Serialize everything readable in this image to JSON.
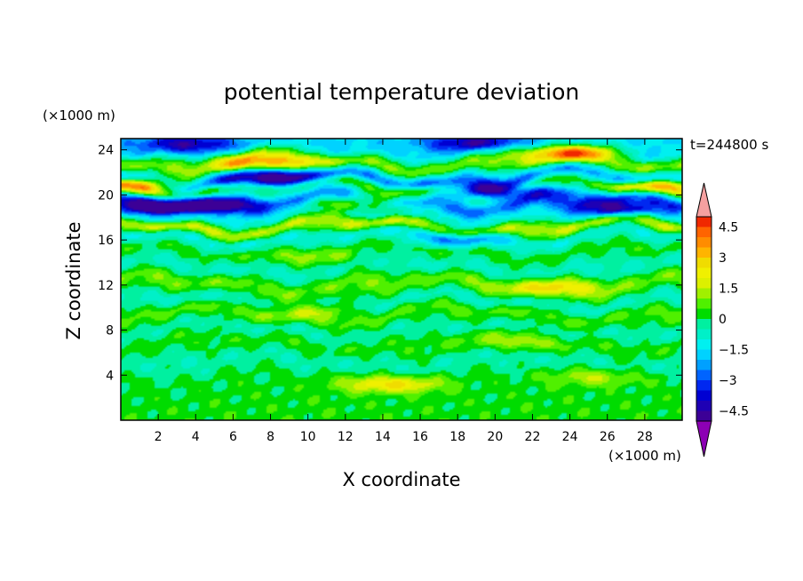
{
  "chart_data": {
    "type": "heatmap",
    "title": "potential temperature deviation",
    "xlabel": "X coordinate",
    "ylabel": "Z coordinate",
    "x_unit": "(×1000 m)",
    "y_unit": "(×1000 m)",
    "time_label": "t=244800 s",
    "xlim": [
      0,
      30
    ],
    "ylim": [
      0,
      25
    ],
    "x_ticks": [
      2,
      4,
      6,
      8,
      10,
      12,
      14,
      16,
      18,
      20,
      22,
      24,
      26,
      28
    ],
    "y_ticks": [
      4,
      8,
      12,
      16,
      20,
      24
    ],
    "colorbar": {
      "levels": [
        -5,
        -4.5,
        -4,
        -3.5,
        -3,
        -2.5,
        -2,
        -1.5,
        -1,
        -0.5,
        0,
        0.5,
        1,
        1.5,
        2,
        2.5,
        3,
        3.5,
        4,
        4.5,
        5
      ],
      "labels": [
        "4.5",
        "3",
        "1.5",
        "0",
        "−1.5",
        "−3",
        "−4.5"
      ],
      "label_values": [
        4.5,
        3,
        1.5,
        0,
        -1.5,
        -3,
        -4.5
      ],
      "colors": [
        "#3c0096",
        "#1e00b4",
        "#0000d2",
        "#0028f0",
        "#0064ff",
        "#00a0ff",
        "#00d2ff",
        "#00f0f0",
        "#00f0c8",
        "#00f0a0",
        "#00dc00",
        "#50f000",
        "#a0f000",
        "#dcf000",
        "#f0f000",
        "#f0dc00",
        "#ffb400",
        "#ff8c00",
        "#ff6400",
        "#f02800"
      ],
      "over_color": "#f5a0a0",
      "under_color": "#8c00b4"
    },
    "bands": [
      {
        "z": 24.3,
        "v": -1.6
      },
      {
        "z": 22.8,
        "v": 0.9
      },
      {
        "z": 21.5,
        "v": -2.3
      },
      {
        "z": 20.6,
        "v": 0.4
      },
      {
        "z": 19.3,
        "v": -2.6
      },
      {
        "z": 18.2,
        "v": -1.0
      },
      {
        "z": 17.2,
        "v": 1.5
      },
      {
        "z": 16.2,
        "v": -0.9
      },
      {
        "z": 15.0,
        "v": 0.2
      },
      {
        "z": 13.5,
        "v": -0.6
      },
      {
        "z": 12.0,
        "v": 0.8
      },
      {
        "z": 10.5,
        "v": -0.6
      },
      {
        "z": 9.4,
        "v": 0.6
      },
      {
        "z": 8.0,
        "v": -0.4
      },
      {
        "z": 6.8,
        "v": 0.3
      },
      {
        "z": 5.2,
        "v": -0.4
      },
      {
        "z": 3.5,
        "v": 0.1
      },
      {
        "z": 1.5,
        "v": 0.25
      },
      {
        "z": 0.3,
        "v": 0.3
      }
    ],
    "features": [
      {
        "x": 7.5,
        "z": 22.8,
        "v": 4.0
      },
      {
        "x": 24.0,
        "z": 23.8,
        "v": 4.2
      },
      {
        "x": 0.8,
        "z": 20.8,
        "v": 3.8
      },
      {
        "x": 29.5,
        "z": 20.8,
        "v": 3.0
      },
      {
        "x": 13.0,
        "z": 19.3,
        "v": 2.5
      },
      {
        "x": 14.5,
        "z": 3.2,
        "v": 2.6
      },
      {
        "x": 8.0,
        "z": 21.4,
        "v": -4.0
      },
      {
        "x": 20.0,
        "z": 20.3,
        "v": -4.0
      },
      {
        "x": 1.5,
        "z": 19.0,
        "v": -3.5
      },
      {
        "x": 5.0,
        "z": 19.2,
        "v": -3.0
      },
      {
        "x": 26.5,
        "z": 18.8,
        "v": -3.5
      },
      {
        "x": 23.0,
        "z": 11.8,
        "v": 2.0
      },
      {
        "x": 19.0,
        "z": 24.6,
        "v": -3.0
      },
      {
        "x": 3.5,
        "z": 24.5,
        "v": -2.8
      },
      {
        "x": 10.0,
        "z": 9.8,
        "v": 1.4
      },
      {
        "x": 21.0,
        "z": 7.0,
        "v": 1.2
      },
      {
        "x": 18.0,
        "z": 16.2,
        "v": -1.8
      },
      {
        "x": 10.5,
        "z": 14.5,
        "v": 1.0
      },
      {
        "x": 25.5,
        "z": 3.8,
        "v": 1.4
      }
    ]
  }
}
